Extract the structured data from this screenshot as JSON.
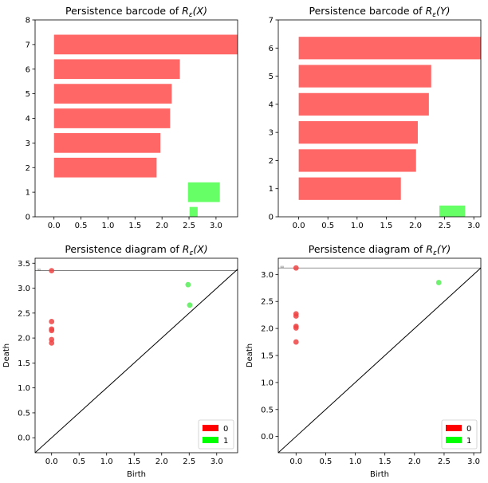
{
  "chart_data": [
    {
      "type": "bar",
      "panel": "barcode",
      "title_text": "Persistence barcode of ",
      "title_math": "R",
      "title_sub": "ε",
      "title_arg": "(X)",
      "orientation": "horizontal",
      "xlim": [
        -0.35,
        3.4
      ],
      "ylim": [
        0,
        8
      ],
      "xticks": [
        "0.0",
        "0.5",
        "1.0",
        "1.5",
        "2.0",
        "2.5",
        "3.0"
      ],
      "yticks": [
        "0",
        "1",
        "2",
        "3",
        "4",
        "5",
        "6",
        "7",
        "8"
      ],
      "bars": [
        {
          "dim": 0,
          "birth": 0.0,
          "death": 3.4,
          "y": 7.0
        },
        {
          "dim": 0,
          "birth": 0.0,
          "death": 2.33,
          "y": 6.0
        },
        {
          "dim": 0,
          "birth": 0.0,
          "death": 2.18,
          "y": 5.0
        },
        {
          "dim": 0,
          "birth": 0.0,
          "death": 2.15,
          "y": 4.0
        },
        {
          "dim": 0,
          "birth": 0.0,
          "death": 1.97,
          "y": 3.0
        },
        {
          "dim": 0,
          "birth": 0.0,
          "death": 1.9,
          "y": 2.0
        },
        {
          "dim": 1,
          "birth": 2.48,
          "death": 3.07,
          "y": 1.0
        },
        {
          "dim": 1,
          "birth": 2.51,
          "death": 2.66,
          "y": 0.2
        }
      ]
    },
    {
      "type": "bar",
      "panel": "barcode",
      "title_text": "Persistence barcode of ",
      "title_math": "R",
      "title_sub": "ε",
      "title_arg": "(Y)",
      "orientation": "horizontal",
      "xlim": [
        -0.35,
        3.12
      ],
      "ylim": [
        0,
        7
      ],
      "xticks": [
        "0.0",
        "0.5",
        "1.0",
        "1.5",
        "2.0",
        "2.5",
        "3.0"
      ],
      "yticks": [
        "0",
        "1",
        "2",
        "3",
        "4",
        "5",
        "6",
        "7"
      ],
      "bars": [
        {
          "dim": 0,
          "birth": 0.0,
          "death": 3.12,
          "y": 6.0
        },
        {
          "dim": 0,
          "birth": 0.0,
          "death": 2.27,
          "y": 5.0
        },
        {
          "dim": 0,
          "birth": 0.0,
          "death": 2.23,
          "y": 4.0
        },
        {
          "dim": 0,
          "birth": 0.0,
          "death": 2.04,
          "y": 3.0
        },
        {
          "dim": 0,
          "birth": 0.0,
          "death": 2.01,
          "y": 2.0
        },
        {
          "dim": 0,
          "birth": 0.0,
          "death": 1.75,
          "y": 1.0
        },
        {
          "dim": 1,
          "birth": 2.41,
          "death": 2.85,
          "y": 0.2
        }
      ]
    },
    {
      "type": "scatter",
      "panel": "diagram",
      "title_text": "Persistence diagram of ",
      "title_math": "R",
      "title_sub": "ε",
      "title_arg": "(X)",
      "xlabel": "Birth",
      "ylabel": "Death",
      "xlim": [
        -0.3,
        3.38
      ],
      "ylim": [
        -0.3,
        3.6
      ],
      "xticks": [
        "0.0",
        "0.5",
        "1.0",
        "1.5",
        "2.0",
        "2.5",
        "3.0"
      ],
      "yticks": [
        "0.0",
        "0.5",
        "1.0",
        "1.5",
        "2.0",
        "2.5",
        "3.0",
        "3.5"
      ],
      "infinity_level": 3.35,
      "infinity_label": "∞",
      "legend": [
        "0",
        "1"
      ],
      "legend_position": "lower-right",
      "points": [
        {
          "dim": 0,
          "birth": 0.0,
          "death": 3.35
        },
        {
          "dim": 0,
          "birth": 0.0,
          "death": 2.33
        },
        {
          "dim": 0,
          "birth": 0.0,
          "death": 2.18
        },
        {
          "dim": 0,
          "birth": 0.0,
          "death": 2.15
        },
        {
          "dim": 0,
          "birth": 0.0,
          "death": 1.97
        },
        {
          "dim": 0,
          "birth": 0.0,
          "death": 1.9
        },
        {
          "dim": 1,
          "birth": 2.48,
          "death": 3.07
        },
        {
          "dim": 1,
          "birth": 2.51,
          "death": 2.66
        }
      ]
    },
    {
      "type": "scatter",
      "panel": "diagram",
      "title_text": "Persistence diagram of ",
      "title_math": "R",
      "title_sub": "ε",
      "title_arg": "(Y)",
      "xlabel": "Birth",
      "ylabel": "Death",
      "xlim": [
        -0.3,
        3.12
      ],
      "ylim": [
        -0.3,
        3.3
      ],
      "xticks": [
        "0.0",
        "0.5",
        "1.0",
        "1.5",
        "2.0",
        "2.5",
        "3.0"
      ],
      "yticks": [
        "0.0",
        "0.5",
        "1.0",
        "1.5",
        "2.0",
        "2.5",
        "3.0"
      ],
      "infinity_level": 3.12,
      "infinity_label": "∞",
      "legend": [
        "0",
        "1"
      ],
      "legend_position": "lower-right",
      "points": [
        {
          "dim": 0,
          "birth": 0.0,
          "death": 3.12
        },
        {
          "dim": 0,
          "birth": 0.0,
          "death": 2.27
        },
        {
          "dim": 0,
          "birth": 0.0,
          "death": 2.23
        },
        {
          "dim": 0,
          "birth": 0.0,
          "death": 2.04
        },
        {
          "dim": 0,
          "birth": 0.0,
          "death": 2.01
        },
        {
          "dim": 0,
          "birth": 0.0,
          "death": 1.75
        },
        {
          "dim": 1,
          "birth": 2.41,
          "death": 2.85
        }
      ]
    }
  ],
  "colors": {
    "dim0_bar": "#ff6666",
    "dim1_bar": "#66ff66",
    "dim0_point": "#ee4444",
    "dim1_point": "#55ee55",
    "legend_dim0": "#ff0000",
    "legend_dim1": "#00ff00",
    "axis": "#000000",
    "diagonal": "#000000",
    "infinity_line": "#555555"
  }
}
